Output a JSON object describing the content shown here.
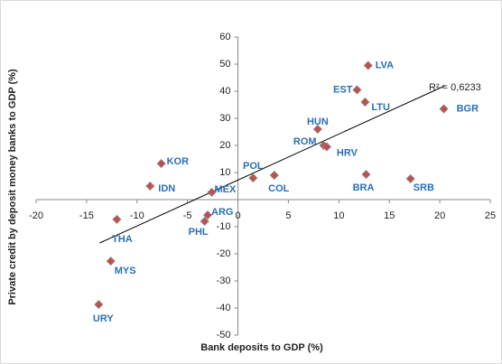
{
  "chart_data": {
    "type": "scatter",
    "x_label": "Bank deposits to GDP (%)",
    "y_label": "Private credit by deposit money banks to GDP (%)",
    "annotation": "R² = 0,6233",
    "labels": [
      "LVA",
      "EST",
      "LTU",
      "BGR",
      "HUN",
      "ROM",
      "HRV",
      "POL",
      "COL",
      "BRA",
      "SRB",
      "KOR",
      "IDN",
      "MEX",
      "ARG",
      "PHL",
      "THA",
      "MYS",
      "URY"
    ],
    "x": [
      12.9,
      11.8,
      12.6,
      20.4,
      7.9,
      8.5,
      8.8,
      1.5,
      3.6,
      12.7,
      17.1,
      -7.6,
      -8.7,
      -2.6,
      -3.0,
      -3.3,
      -12.0,
      -12.6,
      -13.8
    ],
    "y": [
      49.5,
      40.5,
      36,
      33.5,
      26,
      20,
      19.5,
      8,
      9,
      9.3,
      7.7,
      13.3,
      5,
      2.7,
      -5.7,
      -8,
      -7.3,
      -22.7,
      -38.7
    ],
    "color": "#c0504d",
    "trendline": {
      "x": [
        -13.7,
        20.5
      ],
      "y": [
        -16,
        42
      ]
    },
    "xlim": [
      -20,
      25
    ],
    "xticks": [
      -20,
      -15,
      -10,
      -5,
      0,
      5,
      10,
      15,
      20,
      25
    ],
    "ylim": [
      -50,
      60
    ],
    "yticks": [
      -50,
      -40,
      -30,
      -20,
      -10,
      10,
      20,
      30,
      40,
      50,
      60
    ]
  }
}
